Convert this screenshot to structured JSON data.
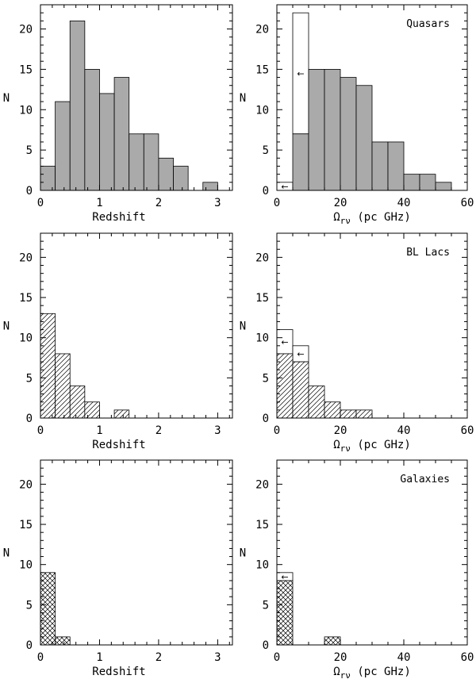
{
  "chart_data": [
    {
      "id": "quasars-z",
      "type": "bar",
      "variable": "redshift",
      "title": "",
      "xlabel": "Redshift",
      "ylabel": "N",
      "xlim": [
        0,
        3.25
      ],
      "ylim": [
        0,
        23
      ],
      "xticks": [
        "0",
        "1",
        "2",
        "3"
      ],
      "yticks": [
        "0",
        "5",
        "10",
        "15",
        "20"
      ],
      "bin_edges": [
        0,
        0.25,
        0.5,
        0.75,
        1.0,
        1.25,
        1.5,
        1.75,
        2.0,
        2.25,
        2.5,
        2.75,
        3.0
      ],
      "series": [
        {
          "name": "Quasars",
          "values": [
            3,
            11,
            21,
            15,
            12,
            14,
            7,
            7,
            4,
            3,
            0,
            1
          ],
          "fill": "#aaaaaa"
        }
      ]
    },
    {
      "id": "quasars-omega",
      "type": "bar",
      "variable": "omega",
      "title": "Quasars",
      "xlabel": "Ω_rν (pc GHz)",
      "ylabel": "N",
      "xlim": [
        0,
        60
      ],
      "ylim": [
        0,
        23
      ],
      "xticks": [
        "0",
        "20",
        "40",
        "60"
      ],
      "yticks": [
        "0",
        "5",
        "10",
        "15",
        "20"
      ],
      "bin_edges": [
        0,
        5,
        10,
        15,
        20,
        25,
        30,
        35,
        40,
        45,
        50,
        55
      ],
      "series": [
        {
          "name": "Quasars",
          "values": [
            0,
            7,
            15,
            15,
            14,
            13,
            6,
            6,
            2,
            2,
            1
          ],
          "fill": "#aaaaaa"
        },
        {
          "name": "Quasars (upper limits)",
          "values": [
            1,
            15,
            0,
            0,
            0,
            0,
            0,
            0,
            0,
            0,
            0
          ],
          "fill": "#ffffff",
          "upper_limit": true
        }
      ]
    },
    {
      "id": "bllacs-z",
      "type": "bar",
      "variable": "redshift",
      "title": "",
      "xlabel": "Redshift",
      "ylabel": "N",
      "xlim": [
        0,
        3.25
      ],
      "ylim": [
        0,
        23
      ],
      "xticks": [
        "0",
        "1",
        "2",
        "3"
      ],
      "yticks": [
        "0",
        "5",
        "10",
        "15",
        "20"
      ],
      "bin_edges": [
        0,
        0.25,
        0.5,
        0.75,
        1.0,
        1.25,
        1.5
      ],
      "series": [
        {
          "name": "BL Lacs",
          "values": [
            13,
            8,
            4,
            2,
            0,
            1
          ],
          "fill": "hatch"
        }
      ]
    },
    {
      "id": "bllacs-omega",
      "type": "bar",
      "variable": "omega",
      "title": "BL Lacs",
      "xlabel": "Ω_rν (pc GHz)",
      "ylabel": "N",
      "xlim": [
        0,
        60
      ],
      "ylim": [
        0,
        23
      ],
      "xticks": [
        "0",
        "20",
        "40",
        "60"
      ],
      "yticks": [
        "0",
        "5",
        "10",
        "15",
        "20"
      ],
      "bin_edges": [
        0,
        5,
        10,
        15,
        20,
        25,
        30
      ],
      "series": [
        {
          "name": "BL Lacs",
          "values": [
            8,
            7,
            4,
            2,
            1,
            1
          ],
          "fill": "hatch"
        },
        {
          "name": "BL Lacs (upper limits)",
          "values": [
            3,
            2,
            0,
            0,
            0,
            0
          ],
          "fill": "#ffffff",
          "upper_limit": true
        }
      ]
    },
    {
      "id": "galaxies-z",
      "type": "bar",
      "variable": "redshift",
      "title": "",
      "xlabel": "Redshift",
      "ylabel": "N",
      "xlim": [
        0,
        3.25
      ],
      "ylim": [
        0,
        23
      ],
      "xticks": [
        "0",
        "1",
        "2",
        "3"
      ],
      "yticks": [
        "0",
        "5",
        "10",
        "15",
        "20"
      ],
      "bin_edges": [
        0,
        0.25,
        0.5
      ],
      "series": [
        {
          "name": "Galaxies",
          "values": [
            9,
            1
          ],
          "fill": "crosshatch"
        }
      ]
    },
    {
      "id": "galaxies-omega",
      "type": "bar",
      "variable": "omega",
      "title": "Galaxies",
      "xlabel": "Ω_rν (pc GHz)",
      "ylabel": "N",
      "xlim": [
        0,
        60
      ],
      "ylim": [
        0,
        23
      ],
      "xticks": [
        "0",
        "20",
        "40",
        "60"
      ],
      "yticks": [
        "0",
        "5",
        "10",
        "15",
        "20"
      ],
      "bin_edges": [
        0,
        5,
        10,
        15,
        20
      ],
      "series": [
        {
          "name": "Galaxies",
          "values": [
            8,
            0,
            0,
            1
          ],
          "fill": "crosshatch"
        },
        {
          "name": "Galaxies (upper limits)",
          "values": [
            1,
            0,
            0,
            0
          ],
          "fill": "#ffffff",
          "upper_limit": true
        }
      ]
    }
  ]
}
